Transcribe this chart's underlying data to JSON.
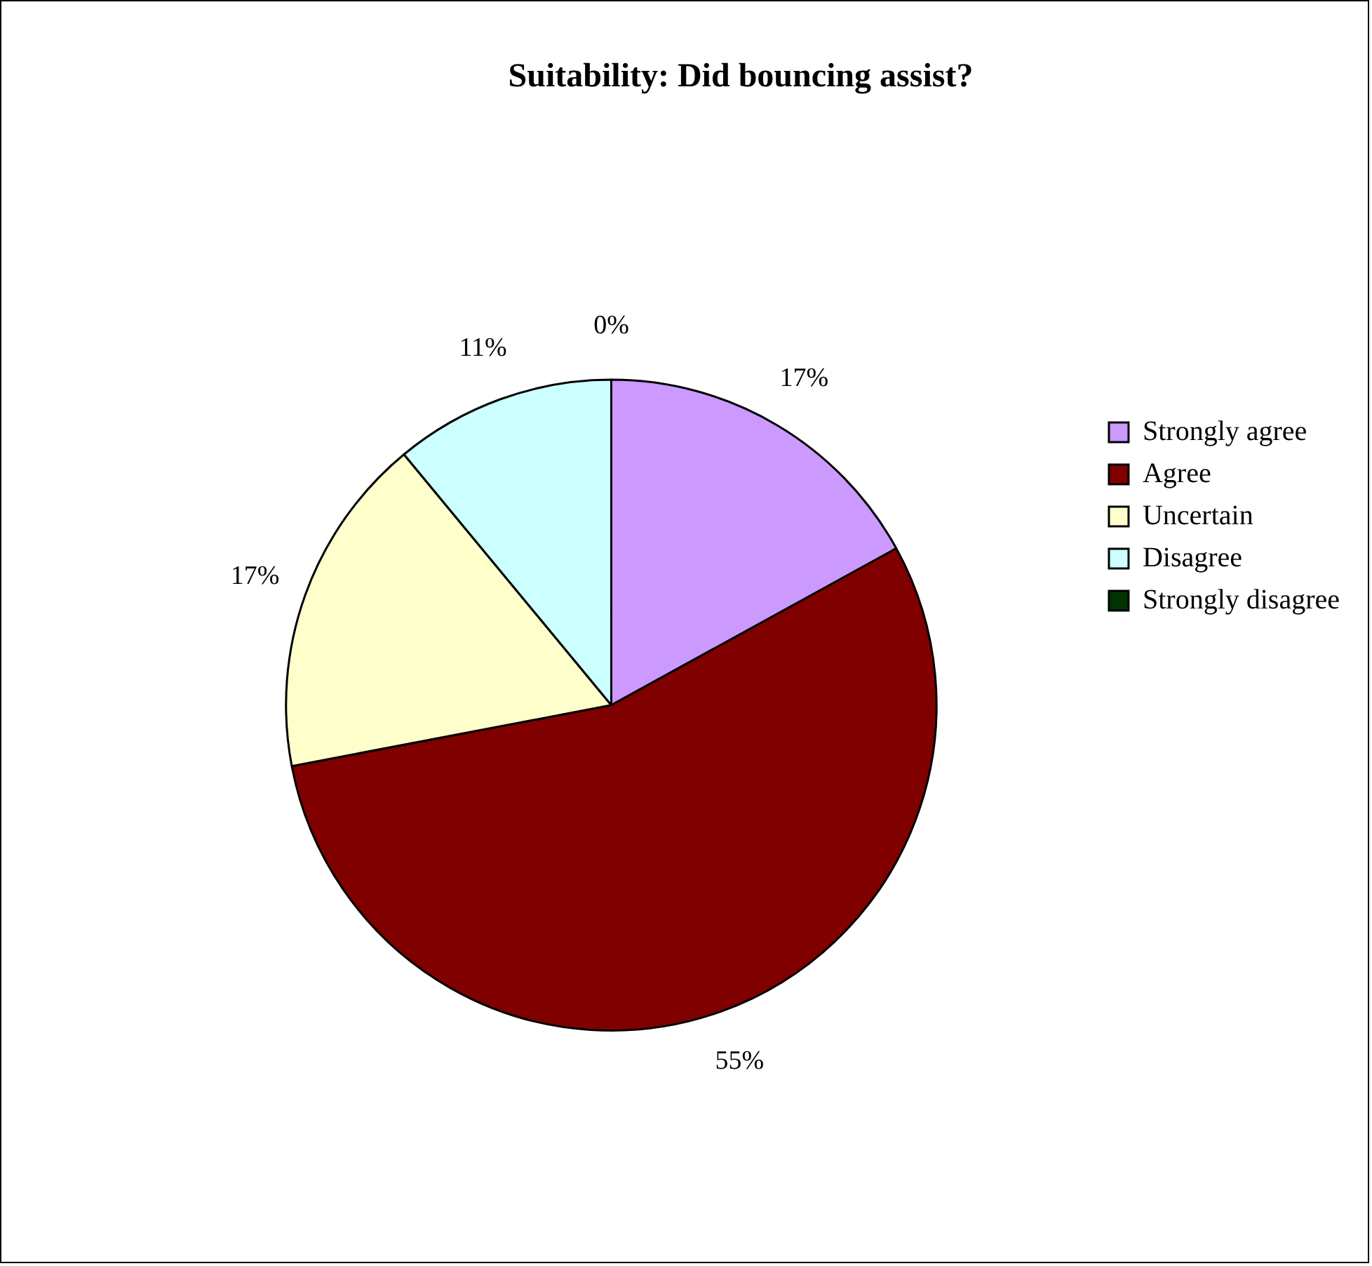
{
  "chart_data": {
    "type": "pie",
    "title": "Suitability: Did bouncing assist?",
    "categories": [
      "Strongly agree",
      "Agree",
      "Uncertain",
      "Disagree",
      "Strongly disagree"
    ],
    "values": [
      17,
      55,
      17,
      11,
      0
    ],
    "value_labels": [
      "17%",
      "55%",
      "17%",
      "11%",
      "0%"
    ],
    "colors": [
      "#cc99ff",
      "#800000",
      "#ffffcc",
      "#ccffff",
      "#003300"
    ],
    "legend": "right"
  }
}
